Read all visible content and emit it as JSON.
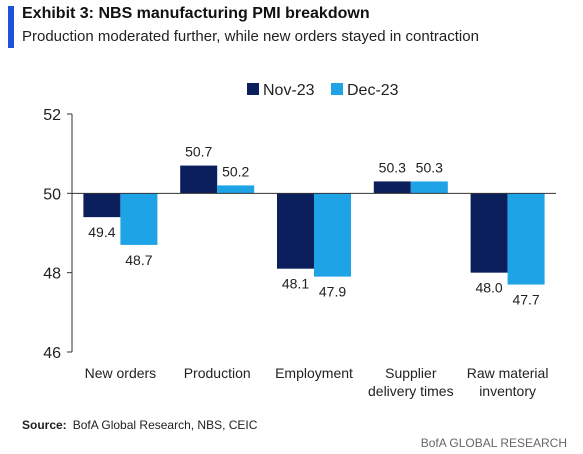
{
  "header": {
    "title": "Exhibit 3: NBS manufacturing PMI breakdown",
    "subtitle": "Production moderated further, while new orders stayed in contraction"
  },
  "chart_data": {
    "type": "bar",
    "categories": [
      [
        "New orders"
      ],
      [
        "Production"
      ],
      [
        "Employment"
      ],
      [
        "Supplier",
        "delivery times"
      ],
      [
        "Raw material",
        "inventory"
      ]
    ],
    "series": [
      {
        "name": "Nov-23",
        "color": "#0b1f5c",
        "values": [
          49.4,
          50.7,
          48.1,
          50.3,
          48.0
        ],
        "labels": [
          "49.4",
          "50.7",
          "48.1",
          "50.3",
          "48.0"
        ]
      },
      {
        "name": "Dec-23",
        "color": "#1ea3e6",
        "values": [
          48.7,
          50.2,
          47.9,
          50.3,
          47.7
        ],
        "labels": [
          "48.7",
          "50.2",
          "47.9",
          "50.3",
          "47.7"
        ]
      }
    ],
    "baseline": 50,
    "ylim": [
      46,
      52
    ],
    "yticks": [
      "46",
      "48",
      "50",
      "52"
    ],
    "grid": false,
    "legend_position": "top-right"
  },
  "footer": {
    "source_label": "Source:",
    "source_text": "BofA Global Research, NBS, CEIC",
    "brand": "BofA GLOBAL RESEARCH"
  }
}
